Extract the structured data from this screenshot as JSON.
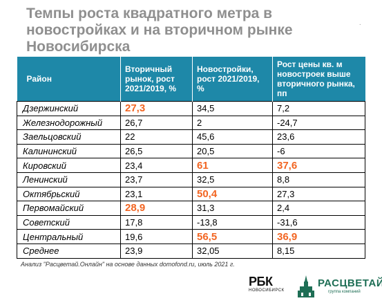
{
  "title": "Темпы роста квадратного метра в новостройках и на вторичном рынке Новосибирска",
  "chart_data": {
    "type": "table",
    "columns": [
      "Район",
      "Вторичный рынок, рост 2021/2019, %",
      "Новостройки, рост 2021/2019, %",
      "Рост цены кв. м новостроек выше вторичного рынка, пп"
    ],
    "rows": [
      {
        "district": "Дзержинский",
        "secondary": "27,3",
        "new": "34,5",
        "diff": "7,2",
        "hl": [
          true,
          false,
          false
        ]
      },
      {
        "district": "Железнодорожный",
        "secondary": "26,7",
        "new": "2",
        "diff": "-24,7",
        "hl": [
          false,
          false,
          false
        ]
      },
      {
        "district": "Заельцовский",
        "secondary": "22",
        "new": "45,6",
        "diff": "23,6",
        "hl": [
          false,
          false,
          false
        ]
      },
      {
        "district": "Калининский",
        "secondary": "26,5",
        "new": "20,5",
        "diff": "-6",
        "hl": [
          false,
          false,
          false
        ]
      },
      {
        "district": "Кировский",
        "secondary": "23,4",
        "new": "61",
        "diff": "37,6",
        "hl": [
          false,
          true,
          true
        ]
      },
      {
        "district": "Ленинский",
        "secondary": "23,7",
        "new": "32,5",
        "diff": "8,8",
        "hl": [
          false,
          false,
          false
        ]
      },
      {
        "district": "Октябрьский",
        "secondary": "23,1",
        "new": "50,4",
        "diff": "27,3",
        "hl": [
          false,
          true,
          false
        ]
      },
      {
        "district": "Первомайский",
        "secondary": "28,9",
        "new": "31,3",
        "diff": "2,4",
        "hl": [
          true,
          false,
          false
        ]
      },
      {
        "district": "Советский",
        "secondary": "17,8",
        "new": "-13,8",
        "diff": "-31,6",
        "hl": [
          false,
          false,
          false
        ]
      },
      {
        "district": "Центральный",
        "secondary": "19,6",
        "new": "56,5",
        "diff": "36,9",
        "hl": [
          false,
          true,
          true
        ]
      },
      {
        "district": "Среднее",
        "secondary": "23,9",
        "new": "32,05",
        "diff": "8,15",
        "hl": [
          false,
          false,
          false
        ]
      }
    ]
  },
  "footnote": "Анализ \"Расцветай.Онлайн\" на основе данных domofond.ru, июль 2021 г.",
  "logos": {
    "rbc": "РБК",
    "rbc_sub": "НОВОСИБИРСК",
    "brand": "РАСЦВЕТАЙ",
    "brand_sub": "группа компаний"
  },
  "colors": {
    "header_bg": "#1e88a8",
    "highlight": "#f26522",
    "title": "#8f8f8f",
    "brand": "#1e6e55"
  }
}
